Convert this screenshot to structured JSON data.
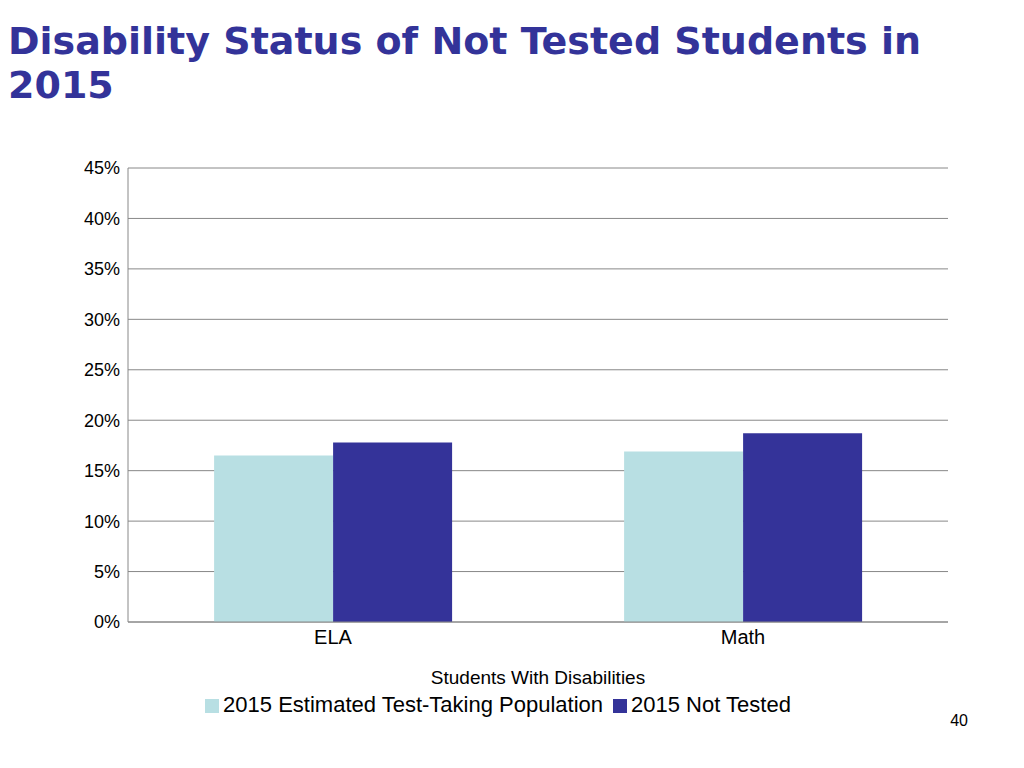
{
  "chart_data": {
    "type": "bar",
    "title": "Disability Status of Not Tested Students in 2015",
    "x_label": "Students With Disabilities",
    "categories": [
      "ELA",
      "Math"
    ],
    "series": [
      {
        "name": "2015 Estimated Test-Taking Population",
        "color": "#b8dfe3",
        "values": [
          16.5,
          16.9
        ]
      },
      {
        "name": "2015 Not Tested",
        "color": "#343399",
        "values": [
          17.8,
          18.7
        ]
      }
    ],
    "ylim": [
      0,
      45
    ],
    "yticks": [
      {
        "value": 0,
        "label": "0%"
      },
      {
        "value": 5,
        "label": "5%"
      },
      {
        "value": 10,
        "label": "10%"
      },
      {
        "value": 15,
        "label": "15%"
      },
      {
        "value": 20,
        "label": "20%"
      },
      {
        "value": 25,
        "label": "25%"
      },
      {
        "value": 30,
        "label": "30%"
      },
      {
        "value": 35,
        "label": "35%"
      },
      {
        "value": 40,
        "label": "40%"
      },
      {
        "value": 45,
        "label": "45%"
      }
    ],
    "grid": true,
    "legend": "bottom",
    "annotations": [
      "40"
    ]
  }
}
